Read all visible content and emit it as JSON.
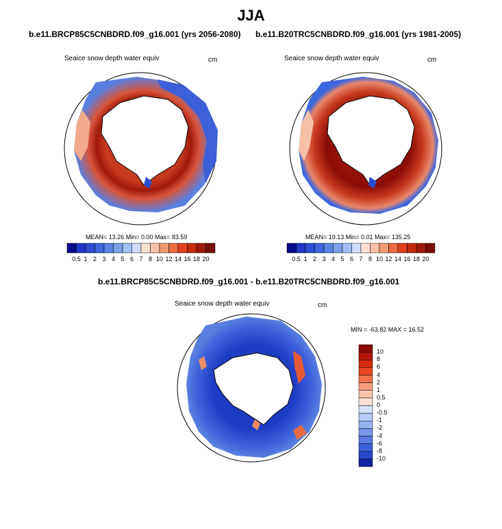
{
  "title": "JJA",
  "panels": [
    {
      "title": "b.e11.BRCP85C5CNBDRD.f09_g16.001 (yrs 2056-2080)",
      "variable": "Seaice snow depth water equiv",
      "units": "cm",
      "stats": "MEAN=  13.26  Min=   0.00  Max=  83.59"
    },
    {
      "title": "b.e11.B20TRC5CNBDRD.f09_g16.001 (yrs 1981-2005)",
      "variable": "Seaice snow depth water equiv",
      "units": "cm",
      "stats": "MEAN=  19.13  Min=   0.01  Max=  135.25"
    },
    {
      "title": "b.e11.BRCP85C5CNBDRD.f09_g16.001 - b.e11.B20TRC5CNBDRD.f09_g16.001",
      "variable": "Seaice snow depth water equiv",
      "units": "cm",
      "stats": "MIN = -63.82 MAX =  16.52"
    }
  ],
  "colorbar_abs": {
    "labels": [
      "0.5",
      "1",
      "2",
      "3",
      "4",
      "5",
      "6",
      "7",
      "8",
      "10",
      "12",
      "14",
      "16",
      "18",
      "20"
    ],
    "colors": [
      "#08088e",
      "#1f35c8",
      "#2c4fd6",
      "#3d66df",
      "#5882e6",
      "#7aa0ec",
      "#a1bff2",
      "#cfdcf8",
      "#fbe0d2",
      "#f8c1a5",
      "#f39a73",
      "#ec6b42",
      "#e0401d",
      "#c42a0e",
      "#a0180a",
      "#7a0c05"
    ]
  },
  "colorbar_diff": {
    "labels": [
      "10",
      "8",
      "6",
      "4",
      "2",
      "1",
      "0.5",
      "0",
      "-0.5",
      "-1",
      "-2",
      "-4",
      "-6",
      "-8",
      "-10"
    ],
    "colors": [
      "#8b0c06",
      "#b31708",
      "#d62a10",
      "#ea4823",
      "#f2734d",
      "#f59c7c",
      "#f8c4ad",
      "#fbe2d6",
      "#d6e3fa",
      "#b6ccf6",
      "#95b2f0",
      "#7596e9",
      "#587ce2",
      "#3c62da",
      "#2746c9",
      "#12249f"
    ]
  }
}
